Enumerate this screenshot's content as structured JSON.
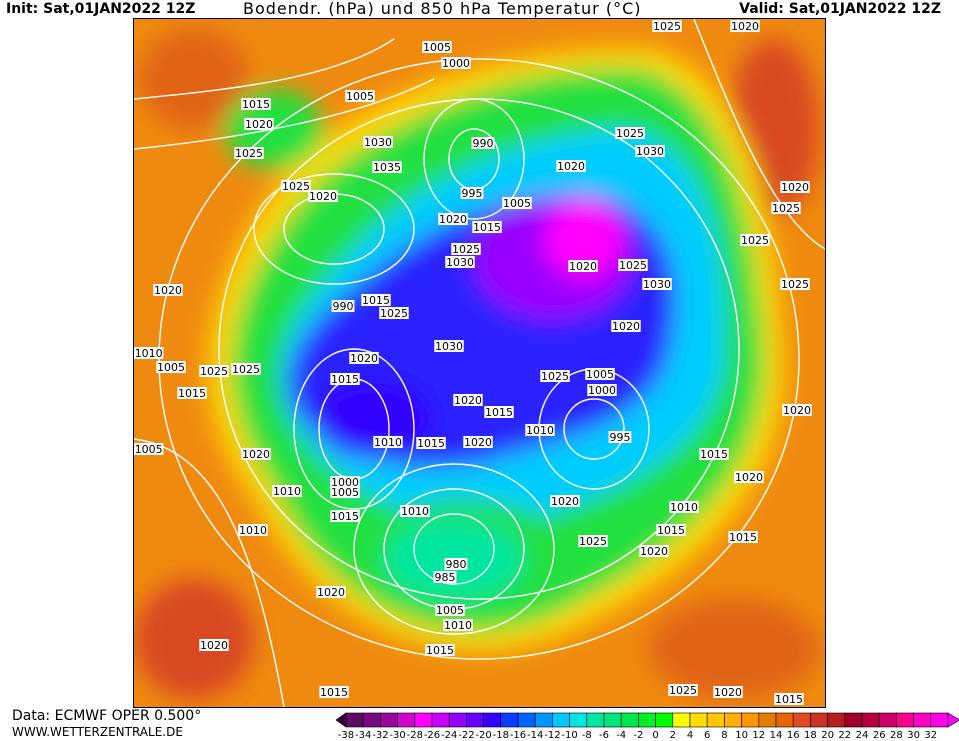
{
  "header": {
    "init": "Init: Sat,01JAN2022 12Z",
    "title": "Bodendr. (hPa) und 850 hPa Temperatur (°C)",
    "valid": "Valid: Sat,01JAN2022 12Z"
  },
  "footer": {
    "data_source": "Data: ECMWF OPER 0.500°",
    "website": "WWW.WETTERZENTRALE.DE"
  },
  "map": {
    "pressure_labels": [
      "1025",
      "1020",
      "1005",
      "1000",
      "1005",
      "1015",
      "1020",
      "1030",
      "1025",
      "990",
      "1025",
      "1030",
      "1020",
      "1035",
      "1025",
      "1020",
      "995",
      "1005",
      "1020",
      "1015",
      "1025",
      "1030",
      "1020",
      "1025",
      "1030",
      "1020",
      "1015",
      "990",
      "1025",
      "1020",
      "1010",
      "1030",
      "1020",
      "1005",
      "1025",
      "1025",
      "1015",
      "1025",
      "1005",
      "1000",
      "1015",
      "1020",
      "1015",
      "1010",
      "995",
      "1010",
      "1015",
      "1020",
      "1005",
      "1020",
      "1015",
      "1020",
      "1000",
      "1005",
      "1010",
      "1020",
      "1010",
      "1010",
      "1015",
      "1010",
      "1015",
      "1015",
      "1025",
      "1020",
      "980",
      "985",
      "1020",
      "1005",
      "1010",
      "1015",
      "1020",
      "1015",
      "1025",
      "1020",
      "1015",
      "1020",
      "1025",
      "1025",
      "1020",
      "1025"
    ],
    "field_colors": {
      "warm": "#ef8a10",
      "yellow": "#ffd800",
      "green": "#22e040",
      "cyan": "#00ccff",
      "blue": "#2a20ff",
      "purple": "#9a00ff",
      "magenta": "#ff00ff"
    }
  },
  "colorbar": {
    "unit": "°C",
    "ticks": [
      "-38",
      "-34",
      "-32",
      "-30",
      "-28",
      "-26",
      "-24",
      "-22",
      "-20",
      "-18",
      "-16",
      "-14",
      "-12",
      "-10",
      "-8",
      "-6",
      "-4",
      "-2",
      "0",
      "2",
      "4",
      "6",
      "8",
      "10",
      "12",
      "14",
      "16",
      "18",
      "20",
      "22",
      "24",
      "26",
      "28",
      "30",
      "32"
    ],
    "colors": [
      "#5c0a66",
      "#7a0a80",
      "#99059c",
      "#cc09c8",
      "#ff00ff",
      "#c800ff",
      "#9600ff",
      "#6400ff",
      "#3200ff",
      "#0a3cff",
      "#0064ff",
      "#0096ff",
      "#00c8ff",
      "#00e6e6",
      "#00e6a0",
      "#00e678",
      "#00e650",
      "#00f028",
      "#00ff00",
      "#ffff00",
      "#ffdc00",
      "#ffc800",
      "#ffb000",
      "#ff9600",
      "#e67d00",
      "#e66400",
      "#e04a20",
      "#cc3322",
      "#b41e1e",
      "#a00028",
      "#b4003c",
      "#c80064",
      "#ff0090",
      "#ff00c8",
      "#ff00e6"
    ],
    "arrow_low": "#3a0040",
    "arrow_high": "#ff00ff"
  }
}
